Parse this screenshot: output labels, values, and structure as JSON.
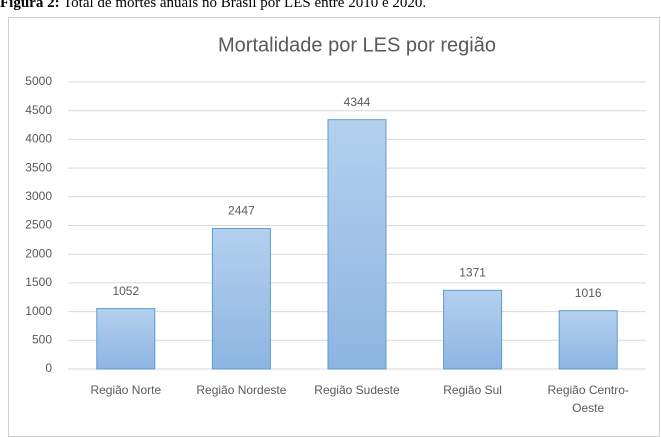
{
  "caption": {
    "label": "Figura 2:",
    "text": "Total de mortes anuais no Brasil por LES entre 2010 e 2020."
  },
  "chart_data": {
    "type": "bar",
    "title": "Mortalidade  por LES por região",
    "categories": [
      "Região Norte",
      "Região Nordeste",
      "Região Sudeste",
      "Região Sul",
      "Região Centro-Oeste"
    ],
    "values": [
      1052,
      2447,
      4344,
      1371,
      1016
    ],
    "color": "#9dc3e6",
    "ylim": [
      0,
      5000
    ],
    "yticks": [
      0,
      500,
      1000,
      1500,
      2000,
      2500,
      3000,
      3500,
      4000,
      4500,
      5000
    ],
    "grid": true
  }
}
